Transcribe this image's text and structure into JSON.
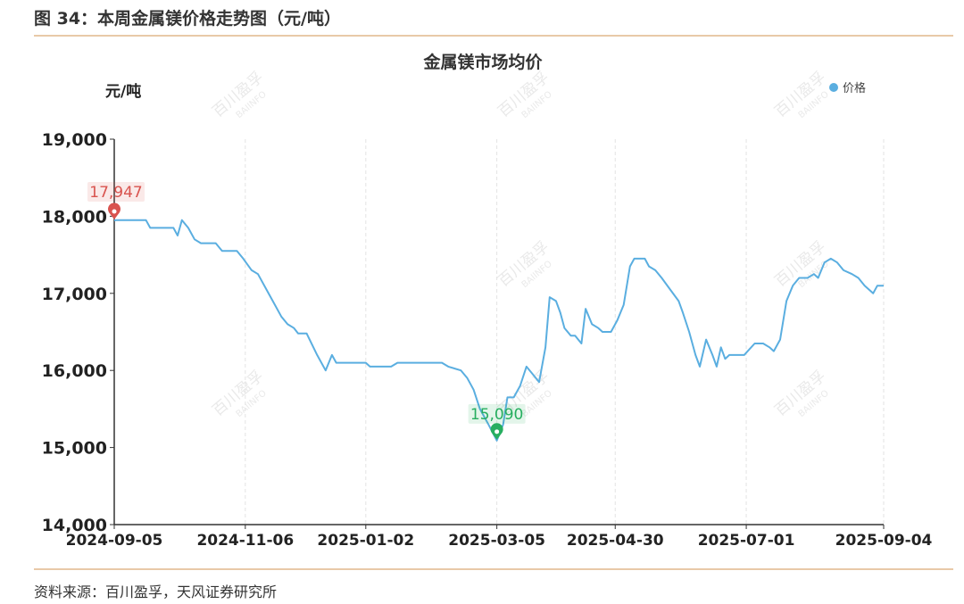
{
  "figure_title": "图 34：本周金属镁价格走势图（元/吨）",
  "source_note": "资料来源：百川盈孚，天风证券研究所",
  "watermark": {
    "main": "百川盈孚",
    "sub": "BAIINFO"
  },
  "colors": {
    "line": "#5aaee0",
    "max_marker": "#d9534f",
    "min_marker": "#27ae60",
    "grid": "#e3e3e3",
    "axis": "#333333"
  },
  "chart_data": {
    "type": "line",
    "title": "金属镁市场均价",
    "ylabel": "元/吨",
    "xlabel": "",
    "ylim": [
      14000,
      19000
    ],
    "yticks": [
      14000,
      15000,
      16000,
      17000,
      18000,
      19000
    ],
    "ytick_labels": [
      "14,000",
      "15,000",
      "16,000",
      "17,000",
      "18,000",
      "19,000"
    ],
    "xticks": [
      "2024-09-05",
      "2024-11-06",
      "2025-01-02",
      "2025-03-05",
      "2025-04-30",
      "2025-07-01",
      "2025-09-04"
    ],
    "legend": {
      "position": "top-right",
      "entries": [
        "价格"
      ]
    },
    "grid": {
      "vertical": true,
      "horizontal": false
    },
    "annotations": [
      {
        "type": "max",
        "date": "2024-09-05",
        "value": 17947,
        "label": "17,947"
      },
      {
        "type": "min",
        "date": "2025-03-05",
        "value": 15090,
        "label": "15,090"
      }
    ],
    "series": [
      {
        "name": "价格",
        "points": [
          [
            "2024-09-05",
            17947
          ],
          [
            "2024-09-06",
            17950
          ],
          [
            "2024-09-20",
            17950
          ],
          [
            "2024-09-22",
            17850
          ],
          [
            "2024-10-03",
            17850
          ],
          [
            "2024-10-05",
            17750
          ],
          [
            "2024-10-07",
            17950
          ],
          [
            "2024-10-10",
            17850
          ],
          [
            "2024-10-13",
            17700
          ],
          [
            "2024-10-16",
            17650
          ],
          [
            "2024-10-23",
            17650
          ],
          [
            "2024-10-26",
            17550
          ],
          [
            "2024-11-02",
            17550
          ],
          [
            "2024-11-05",
            17450
          ],
          [
            "2024-11-09",
            17300
          ],
          [
            "2024-11-12",
            17250
          ],
          [
            "2024-11-16",
            17050
          ],
          [
            "2024-11-19",
            16900
          ],
          [
            "2024-11-23",
            16700
          ],
          [
            "2024-11-26",
            16600
          ],
          [
            "2024-11-29",
            16550
          ],
          [
            "2024-12-01",
            16480
          ],
          [
            "2024-12-05",
            16480
          ],
          [
            "2024-12-10",
            16200
          ],
          [
            "2024-12-14",
            16000
          ],
          [
            "2024-12-17",
            16200
          ],
          [
            "2024-12-19",
            16100
          ],
          [
            "2025-01-02",
            16100
          ],
          [
            "2025-01-04",
            16050
          ],
          [
            "2025-01-14",
            16050
          ],
          [
            "2025-01-17",
            16100
          ],
          [
            "2025-02-07",
            16100
          ],
          [
            "2025-02-10",
            16050
          ],
          [
            "2025-02-16",
            16000
          ],
          [
            "2025-02-19",
            15900
          ],
          [
            "2025-02-22",
            15750
          ],
          [
            "2025-02-25",
            15500
          ],
          [
            "2025-03-01",
            15300
          ],
          [
            "2025-03-05",
            15090
          ],
          [
            "2025-03-08",
            15300
          ],
          [
            "2025-03-10",
            15650
          ],
          [
            "2025-03-13",
            15650
          ],
          [
            "2025-03-16",
            15800
          ],
          [
            "2025-03-19",
            16050
          ],
          [
            "2025-03-22",
            15950
          ],
          [
            "2025-03-25",
            15850
          ],
          [
            "2025-03-28",
            16300
          ],
          [
            "2025-03-30",
            16950
          ],
          [
            "2025-04-02",
            16900
          ],
          [
            "2025-04-04",
            16750
          ],
          [
            "2025-04-06",
            16550
          ],
          [
            "2025-04-09",
            16450
          ],
          [
            "2025-04-11",
            16450
          ],
          [
            "2025-04-14",
            16350
          ],
          [
            "2025-04-16",
            16800
          ],
          [
            "2025-04-19",
            16600
          ],
          [
            "2025-04-22",
            16550
          ],
          [
            "2025-04-24",
            16500
          ],
          [
            "2025-04-28",
            16500
          ],
          [
            "2025-05-01",
            16650
          ],
          [
            "2025-05-04",
            16850
          ],
          [
            "2025-05-07",
            17350
          ],
          [
            "2025-05-09",
            17450
          ],
          [
            "2025-05-14",
            17450
          ],
          [
            "2025-05-16",
            17350
          ],
          [
            "2025-05-19",
            17300
          ],
          [
            "2025-05-22",
            17200
          ],
          [
            "2025-05-26",
            17050
          ],
          [
            "2025-05-30",
            16900
          ],
          [
            "2025-06-01",
            16750
          ],
          [
            "2025-06-04",
            16500
          ],
          [
            "2025-06-07",
            16200
          ],
          [
            "2025-06-09",
            16050
          ],
          [
            "2025-06-12",
            16400
          ],
          [
            "2025-06-15",
            16200
          ],
          [
            "2025-06-17",
            16050
          ],
          [
            "2025-06-19",
            16300
          ],
          [
            "2025-06-21",
            16150
          ],
          [
            "2025-06-23",
            16200
          ],
          [
            "2025-06-30",
            16200
          ],
          [
            "2025-07-05",
            16350
          ],
          [
            "2025-07-09",
            16350
          ],
          [
            "2025-07-12",
            16300
          ],
          [
            "2025-07-14",
            16250
          ],
          [
            "2025-07-17",
            16400
          ],
          [
            "2025-07-20",
            16900
          ],
          [
            "2025-07-23",
            17100
          ],
          [
            "2025-07-26",
            17200
          ],
          [
            "2025-07-30",
            17200
          ],
          [
            "2025-08-02",
            17250
          ],
          [
            "2025-08-04",
            17200
          ],
          [
            "2025-08-07",
            17400
          ],
          [
            "2025-08-10",
            17450
          ],
          [
            "2025-08-13",
            17400
          ],
          [
            "2025-08-16",
            17300
          ],
          [
            "2025-08-20",
            17250
          ],
          [
            "2025-08-23",
            17200
          ],
          [
            "2025-08-26",
            17100
          ],
          [
            "2025-08-30",
            17000
          ],
          [
            "2025-09-01",
            17100
          ],
          [
            "2025-09-04",
            17100
          ]
        ]
      }
    ]
  }
}
